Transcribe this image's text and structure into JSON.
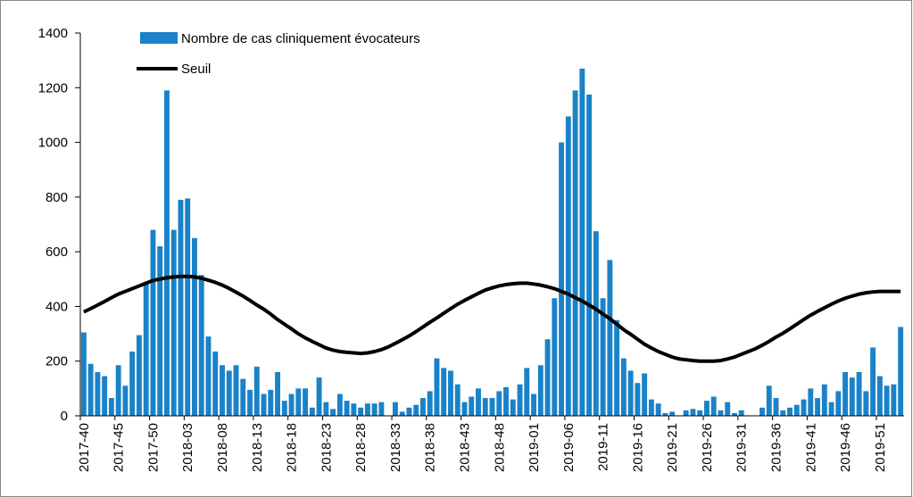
{
  "chart_data": {
    "type": "bar",
    "categories": [
      "2017-40",
      null,
      null,
      null,
      null,
      "2017-45",
      null,
      null,
      null,
      null,
      "2017-50",
      null,
      null,
      null,
      null,
      "2018-03",
      null,
      null,
      null,
      null,
      "2018-08",
      null,
      null,
      null,
      null,
      "2018-13",
      null,
      null,
      null,
      null,
      "2018-18",
      null,
      null,
      null,
      null,
      "2018-23",
      null,
      null,
      null,
      null,
      "2018-28",
      null,
      null,
      null,
      null,
      "2018-33",
      null,
      null,
      null,
      null,
      "2018-38",
      null,
      null,
      null,
      null,
      "2018-43",
      null,
      null,
      null,
      null,
      "2018-48",
      null,
      null,
      null,
      null,
      "2019-01",
      null,
      null,
      null,
      null,
      "2019-06",
      null,
      null,
      null,
      null,
      "2019-11",
      null,
      null,
      null,
      null,
      "2019-16",
      null,
      null,
      null,
      null,
      "2019-21",
      null,
      null,
      null,
      null,
      "2019-26",
      null,
      null,
      null,
      null,
      "2019-31",
      null,
      null,
      null,
      null,
      "2019-36",
      null,
      null,
      null,
      null,
      "2019-41",
      null,
      null,
      null,
      null,
      "2019-46",
      null,
      null,
      null,
      null,
      "2019-51",
      null,
      null,
      null
    ],
    "series": [
      {
        "name": "Nombre de cas cliniquement évocateurs",
        "type": "bar",
        "color": "#1a82c8",
        "values": [
          305,
          190,
          160,
          145,
          65,
          185,
          110,
          235,
          295,
          490,
          680,
          620,
          1190,
          680,
          790,
          795,
          650,
          515,
          290,
          235,
          185,
          165,
          185,
          135,
          95,
          180,
          80,
          95,
          160,
          55,
          80,
          100,
          100,
          30,
          140,
          50,
          25,
          80,
          55,
          45,
          30,
          45,
          45,
          50,
          0,
          50,
          15,
          30,
          40,
          65,
          90,
          210,
          175,
          165,
          115,
          50,
          70,
          100,
          65,
          65,
          90,
          105,
          60,
          115,
          175,
          80,
          185,
          280,
          430,
          1000,
          1095,
          1190,
          1270,
          1175,
          675,
          430,
          570,
          350,
          210,
          165,
          120,
          155,
          60,
          45,
          10,
          15,
          0,
          20,
          25,
          20,
          55,
          70,
          20,
          50,
          10,
          20,
          0,
          0,
          30,
          110,
          65,
          20,
          30,
          40,
          60,
          100,
          65,
          115,
          50,
          90,
          160,
          140,
          160,
          90,
          250,
          145,
          110,
          115,
          325
        ]
      },
      {
        "name": "Seuil",
        "type": "line",
        "color": "#000000",
        "values": [
          380,
          392,
          405,
          418,
          432,
          445,
          455,
          465,
          475,
          485,
          495,
          500,
          505,
          508,
          510,
          510,
          508,
          503,
          496,
          488,
          478,
          466,
          452,
          438,
          422,
          405,
          390,
          372,
          352,
          335,
          318,
          300,
          285,
          272,
          260,
          248,
          240,
          235,
          232,
          230,
          228,
          230,
          235,
          242,
          252,
          265,
          278,
          292,
          308,
          325,
          342,
          358,
          375,
          392,
          408,
          422,
          435,
          448,
          460,
          468,
          475,
          480,
          483,
          485,
          485,
          482,
          478,
          472,
          465,
          455,
          445,
          432,
          420,
          405,
          390,
          372,
          355,
          335,
          315,
          298,
          280,
          262,
          248,
          235,
          225,
          215,
          208,
          205,
          202,
          200,
          200,
          200,
          202,
          208,
          215,
          225,
          235,
          245,
          258,
          272,
          288,
          302,
          318,
          335,
          352,
          368,
          382,
          395,
          408,
          420,
          430,
          438,
          445,
          450,
          453,
          455,
          455,
          455,
          455
        ]
      }
    ],
    "ylim": [
      0,
      1400
    ],
    "yticks": [
      0,
      200,
      400,
      600,
      800,
      1000,
      1200,
      1400
    ]
  }
}
